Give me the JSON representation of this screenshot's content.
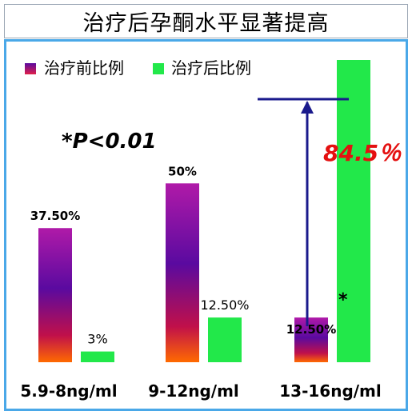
{
  "chart_data": {
    "type": "bar",
    "title": "治疗后孕酮水平显著提高",
    "categories": [
      "5.9-8ng/ml",
      "9-12ng/ml",
      "13-16ng/ml"
    ],
    "series": [
      {
        "name": "治疗前比例",
        "values": [
          37.5,
          50,
          12.5
        ],
        "labels": [
          "37.50%",
          "50%",
          "12.50%"
        ]
      },
      {
        "name": "治疗后比例",
        "values": [
          3,
          12.5,
          84.5
        ],
        "labels": [
          "3%",
          "12.50%",
          ""
        ]
      }
    ],
    "ylim": [
      0,
      100
    ],
    "grid": false,
    "legend_position": "top-left",
    "annotations": {
      "p_value": "*P<0.01",
      "highlight": "84.5％",
      "star": "*"
    },
    "colors": {
      "before_top": "#b01aa8",
      "before_mid": "#5a0aa0",
      "before_bottom": "#ff5a00",
      "after": "#22e84a",
      "arrow": "#1a1a8c",
      "highlight": "#e41010",
      "frame": "#4aa8e8"
    }
  }
}
